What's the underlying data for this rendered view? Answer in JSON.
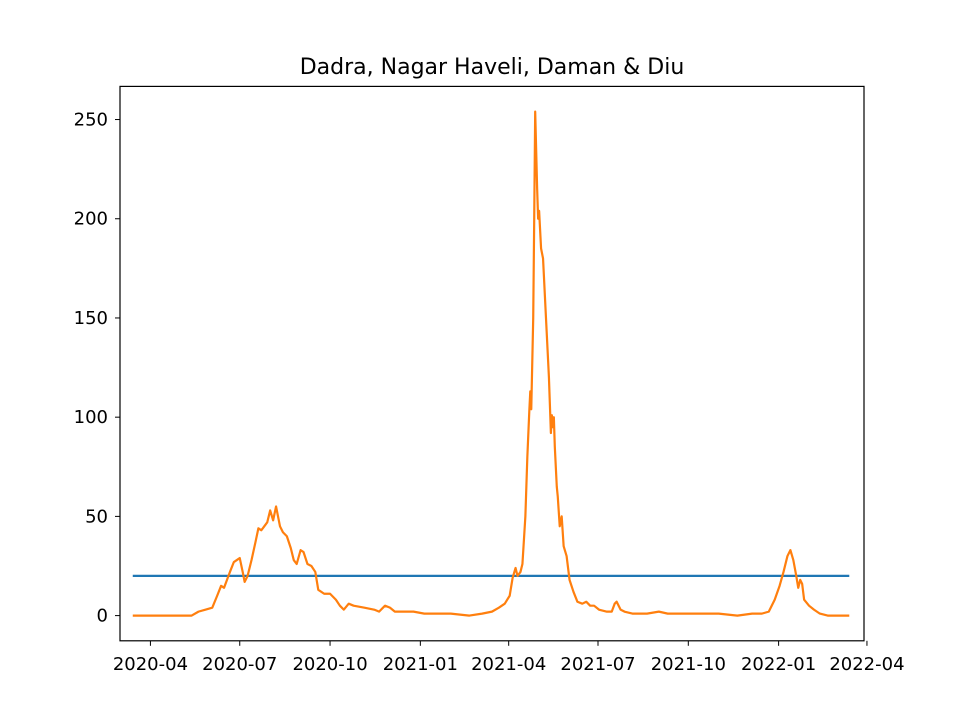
{
  "chart_data": {
    "type": "line",
    "title": "Dadra, Nagar Haveli, Daman & Diu",
    "xlabel": "",
    "ylabel": "",
    "x_start": "2020-03-14",
    "x_end": "2022-03-14",
    "xlim": [
      "2020-03-01",
      "2022-03-29"
    ],
    "ylim": [
      -12.7,
      266.7
    ],
    "x_ticks": [
      {
        "date": "2020-04-01",
        "label": "2020-04"
      },
      {
        "date": "2020-07-01",
        "label": "2020-07"
      },
      {
        "date": "2020-10-01",
        "label": "2020-10"
      },
      {
        "date": "2021-01-01",
        "label": "2021-01"
      },
      {
        "date": "2021-04-01",
        "label": "2021-04"
      },
      {
        "date": "2021-07-01",
        "label": "2021-07"
      },
      {
        "date": "2021-10-01",
        "label": "2021-10"
      },
      {
        "date": "2022-01-01",
        "label": "2022-01"
      },
      {
        "date": "2022-04-01",
        "label": "2022-04"
      }
    ],
    "y_ticks": [
      0,
      50,
      100,
      150,
      200,
      250
    ],
    "grid": false,
    "series": [
      {
        "color": "#1f77b4",
        "points": [
          [
            "2020-03-14",
            20
          ],
          [
            "2022-03-14",
            20
          ]
        ]
      },
      {
        "color": "#ff7f0e",
        "points": [
          [
            "2020-03-14",
            0
          ],
          [
            "2020-05-13",
            0
          ],
          [
            "2020-05-20",
            2
          ],
          [
            "2020-05-27",
            3
          ],
          [
            "2020-06-03",
            4
          ],
          [
            "2020-06-08",
            10
          ],
          [
            "2020-06-12",
            15
          ],
          [
            "2020-06-15",
            14
          ],
          [
            "2020-06-18",
            18
          ],
          [
            "2020-06-21",
            22
          ],
          [
            "2020-06-25",
            27
          ],
          [
            "2020-06-28",
            28
          ],
          [
            "2020-07-01",
            29
          ],
          [
            "2020-07-04",
            22
          ],
          [
            "2020-07-06",
            17
          ],
          [
            "2020-07-09",
            20
          ],
          [
            "2020-07-13",
            28
          ],
          [
            "2020-07-17",
            37
          ],
          [
            "2020-07-20",
            44
          ],
          [
            "2020-07-23",
            43
          ],
          [
            "2020-07-26",
            45
          ],
          [
            "2020-07-29",
            47
          ],
          [
            "2020-08-01",
            53
          ],
          [
            "2020-08-04",
            48
          ],
          [
            "2020-08-07",
            55
          ],
          [
            "2020-08-11",
            45
          ],
          [
            "2020-08-14",
            42
          ],
          [
            "2020-08-18",
            40
          ],
          [
            "2020-08-22",
            34
          ],
          [
            "2020-08-25",
            28
          ],
          [
            "2020-08-28",
            26
          ],
          [
            "2020-09-01",
            33
          ],
          [
            "2020-09-04",
            32
          ],
          [
            "2020-09-08",
            26
          ],
          [
            "2020-09-12",
            25
          ],
          [
            "2020-09-16",
            22
          ],
          [
            "2020-09-19",
            13
          ],
          [
            "2020-09-25",
            11
          ],
          [
            "2020-10-01",
            11
          ],
          [
            "2020-10-07",
            8
          ],
          [
            "2020-10-11",
            5
          ],
          [
            "2020-10-15",
            3
          ],
          [
            "2020-10-20",
            6
          ],
          [
            "2020-10-25",
            5
          ],
          [
            "2020-11-05",
            4
          ],
          [
            "2020-11-15",
            3
          ],
          [
            "2020-11-20",
            2
          ],
          [
            "2020-11-26",
            5
          ],
          [
            "2020-12-01",
            4
          ],
          [
            "2020-12-06",
            2
          ],
          [
            "2020-12-15",
            2
          ],
          [
            "2020-12-25",
            2
          ],
          [
            "2021-01-05",
            1
          ],
          [
            "2021-01-20",
            1
          ],
          [
            "2021-02-01",
            1
          ],
          [
            "2021-02-20",
            0
          ],
          [
            "2021-03-05",
            1
          ],
          [
            "2021-03-15",
            2
          ],
          [
            "2021-03-22",
            4
          ],
          [
            "2021-03-28",
            6
          ],
          [
            "2021-04-02",
            10
          ],
          [
            "2021-04-05",
            19
          ],
          [
            "2021-04-08",
            24
          ],
          [
            "2021-04-10",
            20
          ],
          [
            "2021-04-13",
            22
          ],
          [
            "2021-04-15",
            26
          ],
          [
            "2021-04-18",
            50
          ],
          [
            "2021-04-20",
            80
          ],
          [
            "2021-04-22",
            103
          ],
          [
            "2021-04-23",
            113
          ],
          [
            "2021-04-24",
            104
          ],
          [
            "2021-04-26",
            150
          ],
          [
            "2021-04-27",
            200
          ],
          [
            "2021-04-28",
            254
          ],
          [
            "2021-04-30",
            215
          ],
          [
            "2021-05-01",
            200
          ],
          [
            "2021-05-02",
            204
          ],
          [
            "2021-05-04",
            185
          ],
          [
            "2021-05-06",
            180
          ],
          [
            "2021-05-09",
            150
          ],
          [
            "2021-05-12",
            120
          ],
          [
            "2021-05-14",
            92
          ],
          [
            "2021-05-15",
            101
          ],
          [
            "2021-05-16",
            95
          ],
          [
            "2021-05-17",
            100
          ],
          [
            "2021-05-18",
            85
          ],
          [
            "2021-05-20",
            65
          ],
          [
            "2021-05-21",
            60
          ],
          [
            "2021-05-23",
            45
          ],
          [
            "2021-05-25",
            50
          ],
          [
            "2021-05-27",
            35
          ],
          [
            "2021-05-30",
            30
          ],
          [
            "2021-06-02",
            18
          ],
          [
            "2021-06-06",
            12
          ],
          [
            "2021-06-10",
            7
          ],
          [
            "2021-06-15",
            6
          ],
          [
            "2021-06-19",
            7
          ],
          [
            "2021-06-23",
            5
          ],
          [
            "2021-06-27",
            5
          ],
          [
            "2021-07-02",
            3
          ],
          [
            "2021-07-10",
            2
          ],
          [
            "2021-07-15",
            2
          ],
          [
            "2021-07-18",
            6
          ],
          [
            "2021-07-20",
            7
          ],
          [
            "2021-07-24",
            3
          ],
          [
            "2021-07-28",
            2
          ],
          [
            "2021-08-05",
            1
          ],
          [
            "2021-08-20",
            1
          ],
          [
            "2021-09-01",
            2
          ],
          [
            "2021-09-10",
            1
          ],
          [
            "2021-09-20",
            1
          ],
          [
            "2021-10-01",
            1
          ],
          [
            "2021-10-15",
            1
          ],
          [
            "2021-11-01",
            1
          ],
          [
            "2021-11-20",
            0
          ],
          [
            "2021-12-05",
            1
          ],
          [
            "2021-12-15",
            1
          ],
          [
            "2021-12-22",
            2
          ],
          [
            "2021-12-28",
            8
          ],
          [
            "2022-01-02",
            15
          ],
          [
            "2022-01-06",
            22
          ],
          [
            "2022-01-10",
            30
          ],
          [
            "2022-01-13",
            33
          ],
          [
            "2022-01-16",
            28
          ],
          [
            "2022-01-19",
            20
          ],
          [
            "2022-01-21",
            14
          ],
          [
            "2022-01-23",
            18
          ],
          [
            "2022-01-25",
            16
          ],
          [
            "2022-01-27",
            8
          ],
          [
            "2022-02-01",
            5
          ],
          [
            "2022-02-06",
            3
          ],
          [
            "2022-02-12",
            1
          ],
          [
            "2022-02-20",
            0
          ],
          [
            "2022-03-14",
            0
          ]
        ]
      }
    ]
  }
}
